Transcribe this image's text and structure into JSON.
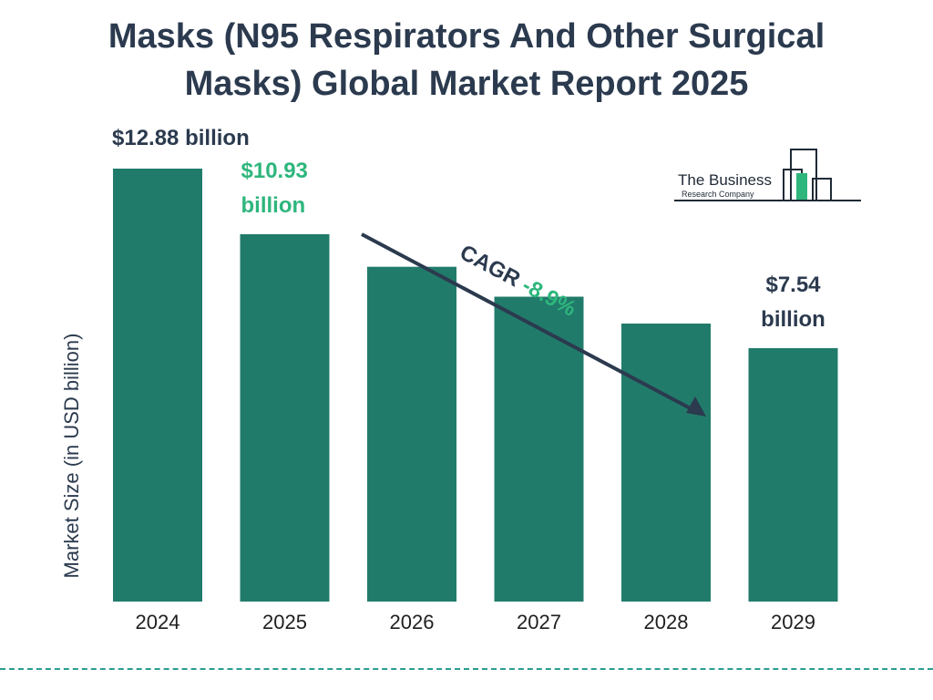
{
  "title": {
    "line1": "Masks (N95 Respirators And Other Surgical",
    "line2": "Masks) Global Market Report 2025"
  },
  "logo": {
    "line1": "The Business",
    "line2": "Research Company",
    "icon": "bar-building-logo-icon"
  },
  "colors": {
    "bar": "#217b6b",
    "title": "#2b3a4e",
    "highlight": "#2eb67d",
    "dark_text": "#2b3a4e",
    "dash": "#2a9d8f"
  },
  "chart_data": {
    "type": "bar",
    "categories": [
      "2024",
      "2025",
      "2026",
      "2027",
      "2028",
      "2029"
    ],
    "values": [
      12.88,
      10.93,
      9.96,
      9.07,
      8.27,
      7.54
    ],
    "ylabel": "Market Size (in USD billion)",
    "ylim": [
      0,
      12.88
    ],
    "grid": false,
    "legend": "none",
    "data_labels": [
      {
        "category": "2024",
        "lines": [
          "$12.88 billion"
        ],
        "color": "#2b3a4e"
      },
      {
        "category": "2025",
        "lines": [
          "$10.93",
          "billion"
        ],
        "color": "#2eb67d"
      },
      {
        "category": "2029",
        "lines": [
          "$7.54",
          "billion"
        ],
        "color": "#2b3a4e"
      }
    ],
    "annotation": {
      "label": "CAGR",
      "value": "-8.9%",
      "from": "2025",
      "to": "2028"
    }
  }
}
